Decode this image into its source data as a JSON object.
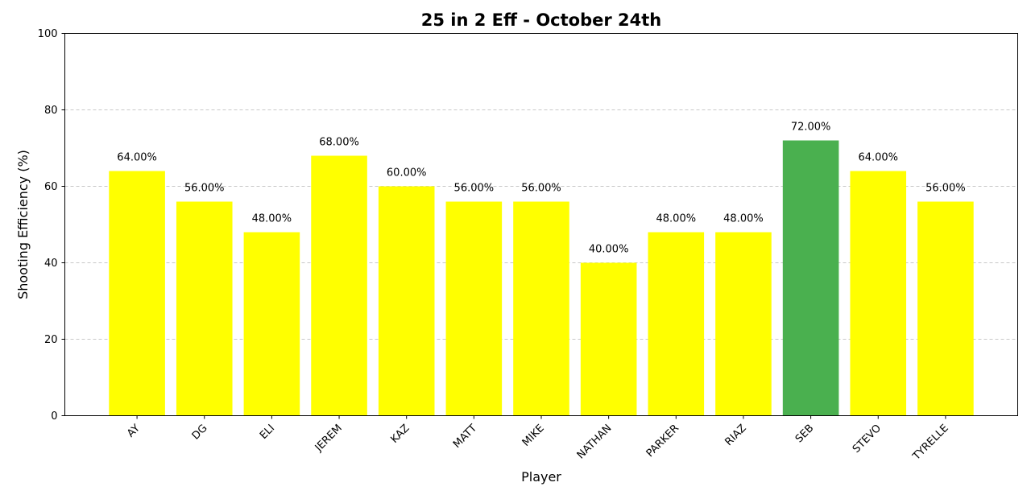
{
  "chart_data": {
    "type": "bar",
    "title": "25 in 2 Eff - October 24th",
    "xlabel": "Player",
    "ylabel": "Shooting Efficiency (%)",
    "ylim": [
      0,
      100
    ],
    "yticks": [
      0,
      20,
      40,
      60,
      80,
      100
    ],
    "grid": "y-dashed",
    "categories": [
      "AY",
      "DG",
      "ELI",
      "JEREM",
      "KAZ",
      "MATT",
      "MIKE",
      "NATHAN",
      "PARKER",
      "RIAZ",
      "SEB",
      "STEVO",
      "TYRELLE"
    ],
    "values": [
      64,
      56,
      48,
      68,
      60,
      56,
      56,
      40,
      48,
      48,
      72,
      64,
      56
    ],
    "data_labels": [
      "64.00%",
      "56.00%",
      "48.00%",
      "68.00%",
      "60.00%",
      "56.00%",
      "56.00%",
      "40.00%",
      "48.00%",
      "48.00%",
      "72.00%",
      "64.00%",
      "56.00%"
    ],
    "bar_color": "#ffff00",
    "highlight_color": "#4ab04f",
    "highlight_category": "SEB"
  }
}
